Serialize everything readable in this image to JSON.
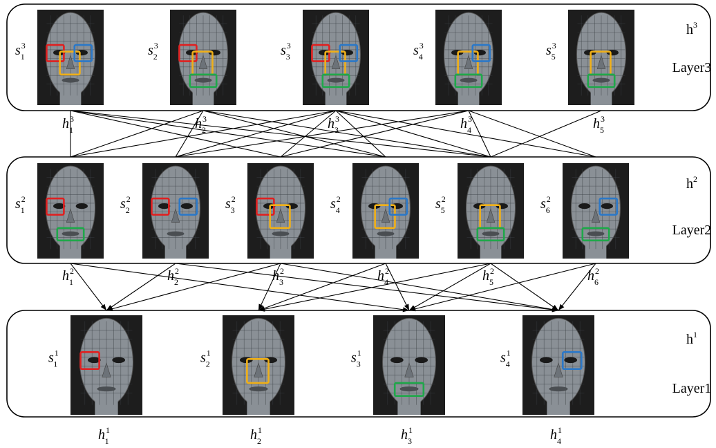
{
  "colors": {
    "stroke": "#000000",
    "face_bg": "#1d1d1d",
    "face_skin": "#8a9096",
    "mesh": "#3a3f44",
    "box_red": "#e02020",
    "box_blue": "#2b78c8",
    "box_yellow": "#f0b018",
    "box_green": "#1fa84a"
  },
  "layers": [
    {
      "id": "layer3",
      "title": "Layer3",
      "h_label": {
        "base": "h",
        "sup": "3"
      },
      "units": [
        {
          "s": "s",
          "sub": "1",
          "sup": "3",
          "h": "h",
          "hsub": "1",
          "hsup": "3",
          "boxes": [
            "red",
            "yellow",
            "blue"
          ]
        },
        {
          "s": "s",
          "sub": "2",
          "sup": "3",
          "h": "h",
          "hsub": "2",
          "hsup": "3",
          "boxes": [
            "red",
            "yellow",
            "green"
          ]
        },
        {
          "s": "s",
          "sub": "3",
          "sup": "3",
          "h": "h",
          "hsub": "3",
          "hsup": "3",
          "boxes": [
            "red",
            "yellow",
            "blue",
            "green"
          ]
        },
        {
          "s": "s",
          "sub": "4",
          "sup": "3",
          "h": "h",
          "hsub": "4",
          "hsup": "3",
          "boxes": [
            "yellow",
            "blue",
            "green"
          ]
        },
        {
          "s": "s",
          "sub": "5",
          "sup": "3",
          "h": "h",
          "hsub": "5",
          "hsup": "3",
          "boxes": [
            "yellow",
            "green"
          ]
        }
      ]
    },
    {
      "id": "layer2",
      "title": "Layer2",
      "h_label": {
        "base": "h",
        "sup": "2"
      },
      "units": [
        {
          "s": "s",
          "sub": "1",
          "sup": "2",
          "h": "h",
          "hsub": "1",
          "hsup": "2",
          "boxes": [
            "red",
            "green"
          ]
        },
        {
          "s": "s",
          "sub": "2",
          "sup": "2",
          "h": "h",
          "hsub": "2",
          "hsup": "2",
          "boxes": [
            "red",
            "blue"
          ]
        },
        {
          "s": "s",
          "sub": "3",
          "sup": "2",
          "h": "h",
          "hsub": "3",
          "hsup": "2",
          "boxes": [
            "red",
            "yellow"
          ]
        },
        {
          "s": "s",
          "sub": "4",
          "sup": "2",
          "h": "h",
          "hsub": "4",
          "hsup": "2",
          "boxes": [
            "yellow",
            "blue"
          ]
        },
        {
          "s": "s",
          "sub": "5",
          "sup": "2",
          "h": "h",
          "hsub": "5",
          "hsup": "2",
          "boxes": [
            "yellow",
            "green"
          ]
        },
        {
          "s": "s",
          "sub": "6",
          "sup": "2",
          "h": "h",
          "hsub": "6",
          "hsup": "2",
          "boxes": [
            "blue",
            "green"
          ]
        }
      ]
    },
    {
      "id": "layer1",
      "title": "Layer1",
      "h_label": {
        "base": "h",
        "sup": "1"
      },
      "units": [
        {
          "s": "s",
          "sub": "1",
          "sup": "1",
          "h": "h",
          "hsub": "1",
          "hsup": "1",
          "boxes": [
            "red"
          ]
        },
        {
          "s": "s",
          "sub": "2",
          "sup": "1",
          "h": "h",
          "hsub": "2",
          "hsup": "1",
          "boxes": [
            "yellow"
          ]
        },
        {
          "s": "s",
          "sub": "3",
          "sup": "1",
          "h": "h",
          "hsub": "3",
          "hsup": "1",
          "boxes": [
            "green"
          ]
        },
        {
          "s": "s",
          "sub": "4",
          "sup": "1",
          "h": "h",
          "hsub": "4",
          "hsup": "1",
          "boxes": [
            "blue"
          ]
        }
      ]
    }
  ],
  "connections_3_to_2": [
    [
      0,
      0
    ],
    [
      0,
      2
    ],
    [
      0,
      3
    ],
    [
      0,
      4
    ],
    [
      1,
      0
    ],
    [
      1,
      1
    ],
    [
      1,
      3
    ],
    [
      1,
      4
    ],
    [
      2,
      0
    ],
    [
      2,
      1
    ],
    [
      2,
      2
    ],
    [
      2,
      3
    ],
    [
      2,
      4
    ],
    [
      2,
      5
    ],
    [
      3,
      1
    ],
    [
      3,
      2
    ],
    [
      3,
      4
    ],
    [
      3,
      5
    ],
    [
      4,
      4
    ]
  ],
  "connections_2_to_1": [
    [
      0,
      0
    ],
    [
      0,
      2
    ],
    [
      1,
      0
    ],
    [
      1,
      3
    ],
    [
      2,
      0
    ],
    [
      2,
      1
    ],
    [
      2,
      3
    ],
    [
      3,
      1
    ],
    [
      3,
      2
    ],
    [
      4,
      1
    ],
    [
      4,
      2
    ],
    [
      4,
      3
    ],
    [
      5,
      2
    ],
    [
      5,
      3
    ]
  ]
}
